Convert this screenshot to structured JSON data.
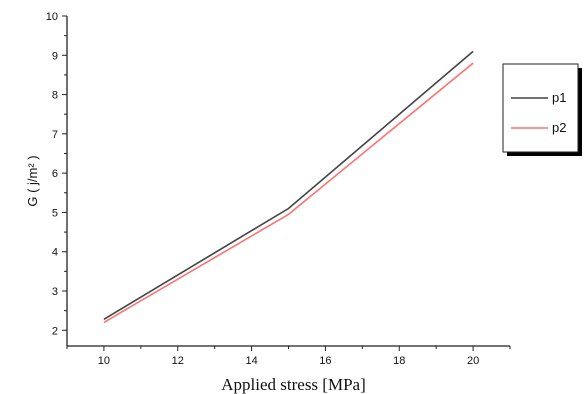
{
  "chart_data": {
    "type": "line",
    "xlabel": "Applied stress [MPa]",
    "ylabel": "G ( j/m² )",
    "xlim": [
      9,
      21
    ],
    "ylim": [
      1.6,
      10
    ],
    "x_ticks": [
      10,
      12,
      14,
      16,
      18,
      20
    ],
    "y_ticks": [
      2,
      3,
      4,
      5,
      6,
      7,
      8,
      9,
      10
    ],
    "grid": false,
    "legend_position": "right",
    "series": [
      {
        "name": "p1",
        "color": "#444444",
        "x": [
          10,
          15,
          20
        ],
        "y": [
          2.28,
          5.1,
          9.1
        ]
      },
      {
        "name": "p2",
        "color": "#ff6f6f",
        "x": [
          10,
          15,
          20
        ],
        "y": [
          2.2,
          4.95,
          8.8
        ]
      }
    ]
  }
}
